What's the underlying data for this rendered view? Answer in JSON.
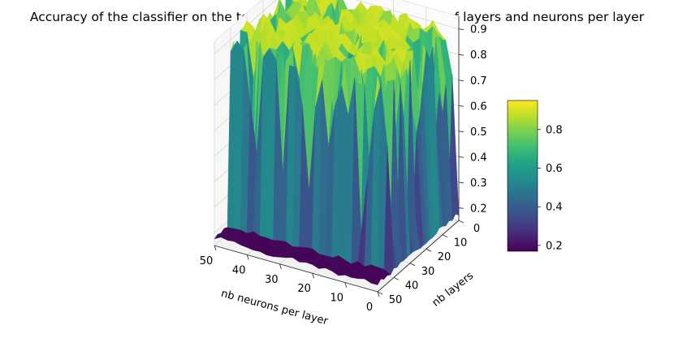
{
  "chart_data": {
    "type": "surface3d",
    "title": "Accuracy of the classifier on the test set by changing the number of layers and neurons per layer",
    "xlabel": "nb neurons per layer",
    "ylabel": "nb layers",
    "xlim": [
      0,
      50
    ],
    "ylim": [
      0,
      50
    ],
    "zlim": [
      0.15,
      0.95
    ],
    "x_ticks": [
      "0",
      "10",
      "20",
      "30",
      "40",
      "50"
    ],
    "y_ticks": [
      "0",
      "10",
      "20",
      "30",
      "40",
      "50"
    ],
    "z_ticks": [
      "0.2",
      "0.3",
      "0.4",
      "0.5",
      "0.6",
      "0.7",
      "0.8",
      "0.9"
    ],
    "colormap": "viridis",
    "colorbar": {
      "range": [
        0.17,
        0.95
      ],
      "ticks": [
        "0.2",
        "0.4",
        "0.6",
        "0.8"
      ]
    },
    "surface": {
      "grid_size": 51,
      "description_values": {
        "high_plateau": 0.92,
        "low_floor": 0.17,
        "plateau_region": "neurons 2-50, layers 0-40",
        "floor_region": "neurons 0-1 or layers above ~40"
      }
    }
  }
}
